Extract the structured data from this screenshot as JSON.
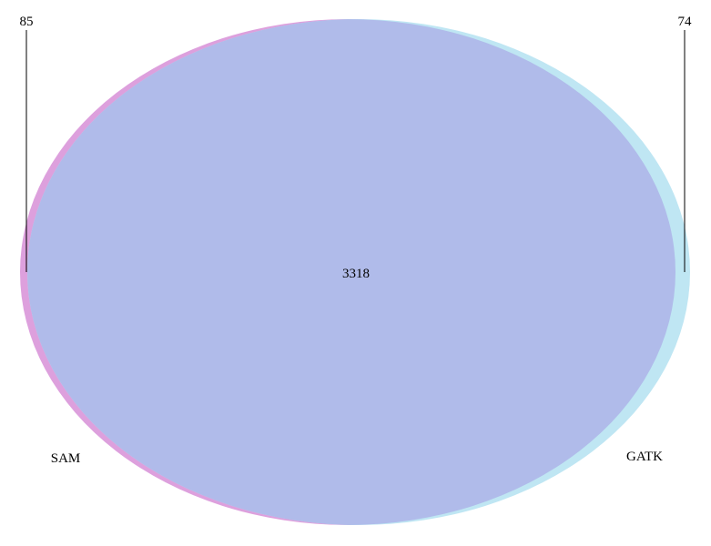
{
  "diagram": {
    "type": "venn-2",
    "sets": [
      {
        "key": "sam",
        "name": "SAM",
        "color": "#dda0dd"
      },
      {
        "key": "gatk",
        "name": "GATK",
        "color": "#bfe6f3"
      }
    ],
    "overlap_color": "#b0bbea",
    "counts": {
      "sam_only": "85",
      "gatk_only": "74",
      "both": "3318"
    }
  }
}
